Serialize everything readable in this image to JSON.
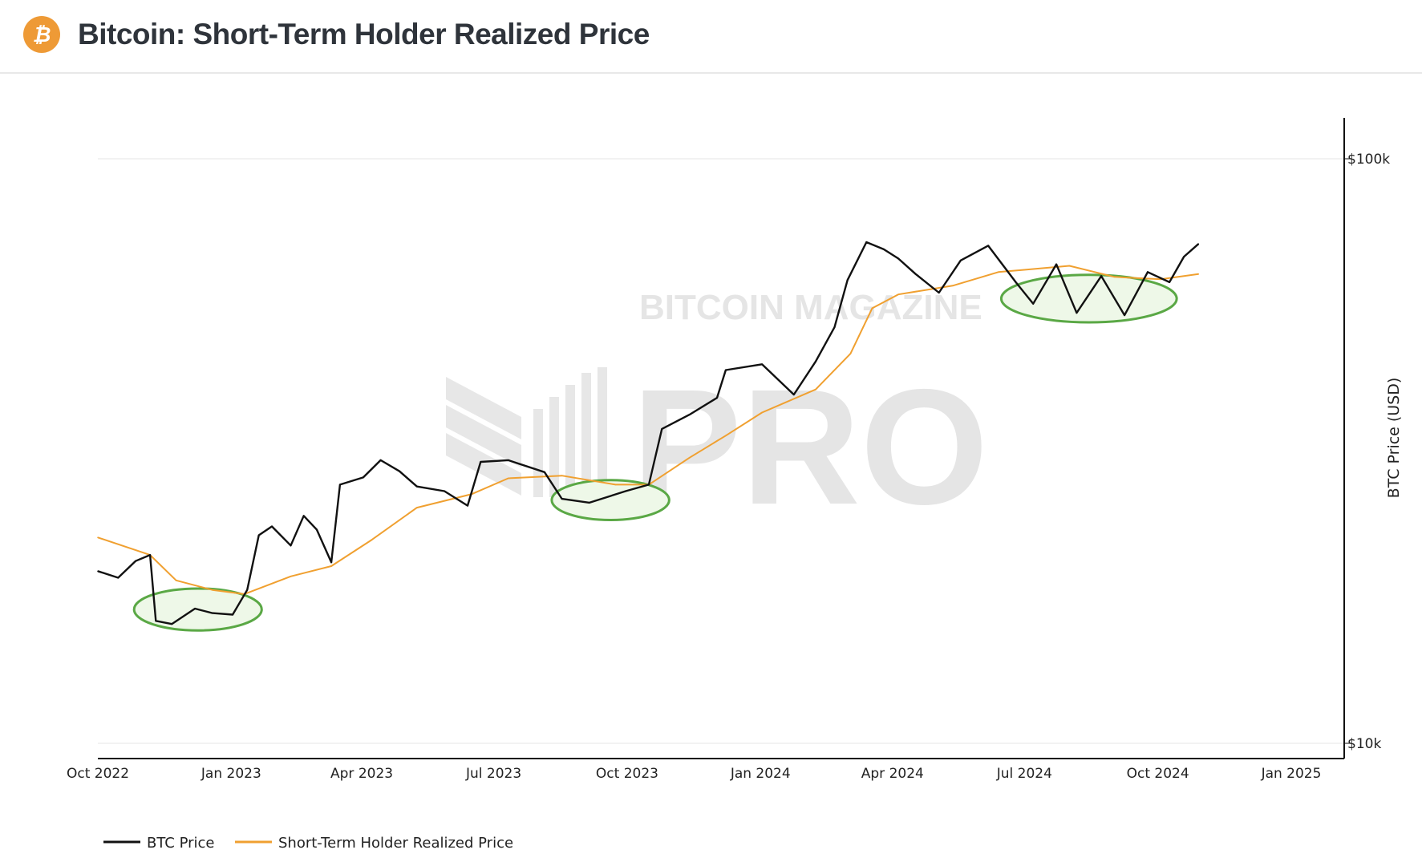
{
  "header": {
    "title": "Bitcoin: Short-Term Holder Realized Price",
    "logo_glyph": "₿"
  },
  "watermark": {
    "line1": "BITCOIN MAGAZINE",
    "line2": "PRO"
  },
  "colors": {
    "btc": "#111111",
    "sth": "#f0a030",
    "annotation": "#5aa845",
    "annotation_fill": "#eef8e8"
  },
  "chart_data": {
    "type": "line",
    "title": "Bitcoin: Short-Term Holder Realized Price",
    "xlabel": "",
    "ylabel": "BTC Price (USD)",
    "yscale": "log",
    "ylim": [
      10000,
      100000
    ],
    "xlim": [
      "2022-10-01",
      "2025-01-01"
    ],
    "y_ticks": [
      {
        "value": 100000,
        "label": "$100k"
      },
      {
        "value": 10000,
        "label": "$10k"
      }
    ],
    "x_ticks": [
      {
        "date": "2022-10-01",
        "label": "Oct 2022"
      },
      {
        "date": "2023-01-01",
        "label": "Jan 2023"
      },
      {
        "date": "2023-04-01",
        "label": "Apr 2023"
      },
      {
        "date": "2023-07-01",
        "label": "Jul 2023"
      },
      {
        "date": "2023-10-01",
        "label": "Oct 2023"
      },
      {
        "date": "2024-01-01",
        "label": "Jan 2024"
      },
      {
        "date": "2024-04-01",
        "label": "Apr 2024"
      },
      {
        "date": "2024-07-01",
        "label": "Jul 2024"
      },
      {
        "date": "2024-10-01",
        "label": "Oct 2024"
      },
      {
        "date": "2025-01-01",
        "label": "Jan 2025"
      }
    ],
    "grid": "horizontal",
    "legend_position": "bottom-left",
    "series": [
      {
        "name": "BTC Price",
        "color": "#111111",
        "points": [
          [
            "2022-10-01",
            19700
          ],
          [
            "2022-10-15",
            19200
          ],
          [
            "2022-10-27",
            20500
          ],
          [
            "2022-11-06",
            21000
          ],
          [
            "2022-11-10",
            16200
          ],
          [
            "2022-11-21",
            16000
          ],
          [
            "2022-12-07",
            17000
          ],
          [
            "2022-12-19",
            16700
          ],
          [
            "2023-01-02",
            16600
          ],
          [
            "2023-01-12",
            18300
          ],
          [
            "2023-01-20",
            22700
          ],
          [
            "2023-01-29",
            23500
          ],
          [
            "2023-02-11",
            21800
          ],
          [
            "2023-02-20",
            24500
          ],
          [
            "2023-03-01",
            23200
          ],
          [
            "2023-03-11",
            20400
          ],
          [
            "2023-03-17",
            27700
          ],
          [
            "2023-04-02",
            28500
          ],
          [
            "2023-04-14",
            30500
          ],
          [
            "2023-04-27",
            29200
          ],
          [
            "2023-05-09",
            27500
          ],
          [
            "2023-05-28",
            27000
          ],
          [
            "2023-06-13",
            25500
          ],
          [
            "2023-06-22",
            30300
          ],
          [
            "2023-07-11",
            30500
          ],
          [
            "2023-08-05",
            29100
          ],
          [
            "2023-08-17",
            26200
          ],
          [
            "2023-09-05",
            25800
          ],
          [
            "2023-09-30",
            27000
          ],
          [
            "2023-10-16",
            27700
          ],
          [
            "2023-10-25",
            34500
          ],
          [
            "2023-11-13",
            36500
          ],
          [
            "2023-12-02",
            39000
          ],
          [
            "2023-12-08",
            43500
          ],
          [
            "2024-01-02",
            44500
          ],
          [
            "2024-01-24",
            39500
          ],
          [
            "2024-02-08",
            45000
          ],
          [
            "2024-02-21",
            51500
          ],
          [
            "2024-03-01",
            62000
          ],
          [
            "2024-03-14",
            72000
          ],
          [
            "2024-03-26",
            70000
          ],
          [
            "2024-04-05",
            67500
          ],
          [
            "2024-04-17",
            63500
          ],
          [
            "2024-05-03",
            59000
          ],
          [
            "2024-05-18",
            67000
          ],
          [
            "2024-06-06",
            71000
          ],
          [
            "2024-06-25",
            61500
          ],
          [
            "2024-07-07",
            56500
          ],
          [
            "2024-07-23",
            66000
          ],
          [
            "2024-08-06",
            54500
          ],
          [
            "2024-08-23",
            63000
          ],
          [
            "2024-09-08",
            54000
          ],
          [
            "2024-09-24",
            64000
          ],
          [
            "2024-10-09",
            61500
          ],
          [
            "2024-10-19",
            68000
          ],
          [
            "2024-10-29",
            71500
          ]
        ]
      },
      {
        "name": "Short-Term Holder Realized Price",
        "color": "#f0a030",
        "points": [
          [
            "2022-10-01",
            22500
          ],
          [
            "2022-11-06",
            21000
          ],
          [
            "2022-11-24",
            19000
          ],
          [
            "2022-12-19",
            18300
          ],
          [
            "2023-01-10",
            18000
          ],
          [
            "2023-02-11",
            19300
          ],
          [
            "2023-03-11",
            20100
          ],
          [
            "2023-04-08",
            22300
          ],
          [
            "2023-05-09",
            25300
          ],
          [
            "2023-06-16",
            26700
          ],
          [
            "2023-07-11",
            28400
          ],
          [
            "2023-08-17",
            28700
          ],
          [
            "2023-09-23",
            27700
          ],
          [
            "2023-10-16",
            27700
          ],
          [
            "2023-11-13",
            30800
          ],
          [
            "2023-12-08",
            33600
          ],
          [
            "2024-01-02",
            36800
          ],
          [
            "2024-02-08",
            40300
          ],
          [
            "2024-03-03",
            46400
          ],
          [
            "2024-03-18",
            55500
          ],
          [
            "2024-04-05",
            58600
          ],
          [
            "2024-05-13",
            60700
          ],
          [
            "2024-06-13",
            64000
          ],
          [
            "2024-08-01",
            65600
          ],
          [
            "2024-09-01",
            62800
          ],
          [
            "2024-10-03",
            62200
          ],
          [
            "2024-10-29",
            63500
          ]
        ]
      }
    ],
    "annotations": [
      {
        "type": "ellipse",
        "from": "2022-10-26",
        "to": "2023-01-22",
        "price_low": 15600,
        "price_high": 18400
      },
      {
        "type": "ellipse",
        "from": "2023-08-10",
        "to": "2023-10-30",
        "price_low": 24100,
        "price_high": 28200
      },
      {
        "type": "ellipse",
        "from": "2024-06-15",
        "to": "2024-10-14",
        "price_low": 52500,
        "price_high": 63300
      }
    ]
  }
}
